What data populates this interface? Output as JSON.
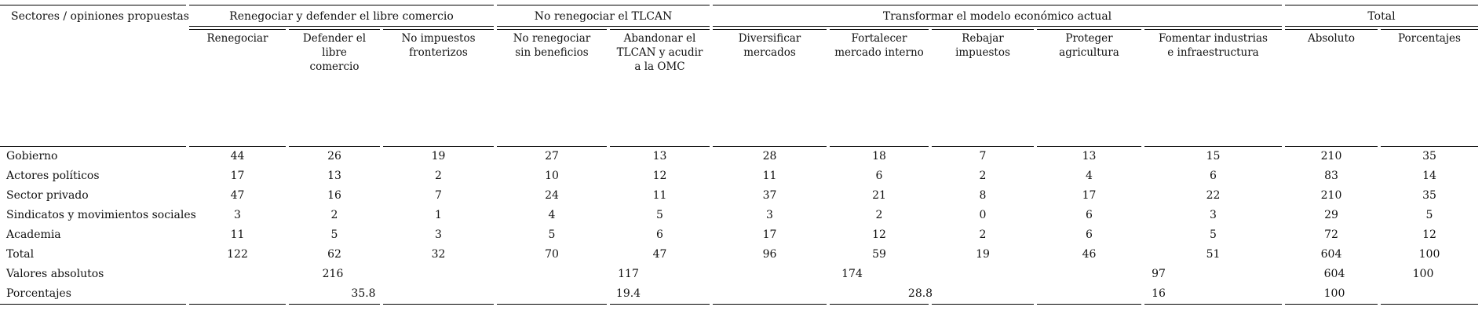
{
  "table": {
    "corner_header": "Sectores / opiniones propuestas",
    "groups": [
      {
        "label": "Renegociar y defender el libre comercio"
      },
      {
        "label": "No renegociar el TLCAN"
      },
      {
        "label": "Transformar el modelo económico actual"
      },
      {
        "label": "Total"
      }
    ],
    "columns": [
      "Renegociar",
      "Defender el libre comercio",
      "No impuestos fronterizos",
      "No renegociar sin beneficios",
      "Abandonar el TLCAN y acudir a la OMC",
      "Diversificar mercados",
      "Fortalecer mercado interno",
      "Rebajar impuestos",
      "Proteger agricultura",
      "Fomentar industrias e infraestructura",
      "Absoluto",
      "Porcentajes"
    ],
    "rows": [
      {
        "label": "Gobierno",
        "values": [
          "44",
          "26",
          "19",
          "27",
          "13",
          "28",
          "18",
          "7",
          "13",
          "15",
          "210",
          "35"
        ]
      },
      {
        "label": "Actores políticos",
        "values": [
          "17",
          "13",
          "2",
          "10",
          "12",
          "11",
          "6",
          "2",
          "4",
          "6",
          "83",
          "14"
        ]
      },
      {
        "label": "Sector privado",
        "values": [
          "47",
          "16",
          "7",
          "24",
          "11",
          "37",
          "21",
          "8",
          "17",
          "22",
          "210",
          "35"
        ]
      },
      {
        "label": "Sindicatos y movimientos sociales",
        "values": [
          "3",
          "2",
          "1",
          "4",
          "5",
          "3",
          "2",
          "0",
          "6",
          "3",
          "29",
          "5"
        ]
      },
      {
        "label": "Academia",
        "values": [
          "11",
          "5",
          "3",
          "5",
          "6",
          "17",
          "12",
          "2",
          "6",
          "5",
          "72",
          "12"
        ]
      },
      {
        "label": "Total",
        "values": [
          "122",
          "62",
          "32",
          "70",
          "47",
          "96",
          "59",
          "19",
          "46",
          "51",
          "604",
          "100"
        ]
      }
    ],
    "summary_rows": [
      {
        "label": "Valores absolutos",
        "cells": [
          {
            "value": "216"
          },
          {
            "value": "117"
          },
          {
            "value": "174"
          },
          {
            "value": "97"
          },
          {
            "value": "604"
          },
          {
            "value": "100"
          }
        ]
      },
      {
        "label": "Porcentajes",
        "cells": [
          {
            "value": "35.8"
          },
          {
            "value": "19.4"
          },
          {
            "value": "28.8"
          },
          {
            "value": "16"
          },
          {
            "value": "100"
          },
          {
            "value": ""
          }
        ]
      }
    ]
  }
}
